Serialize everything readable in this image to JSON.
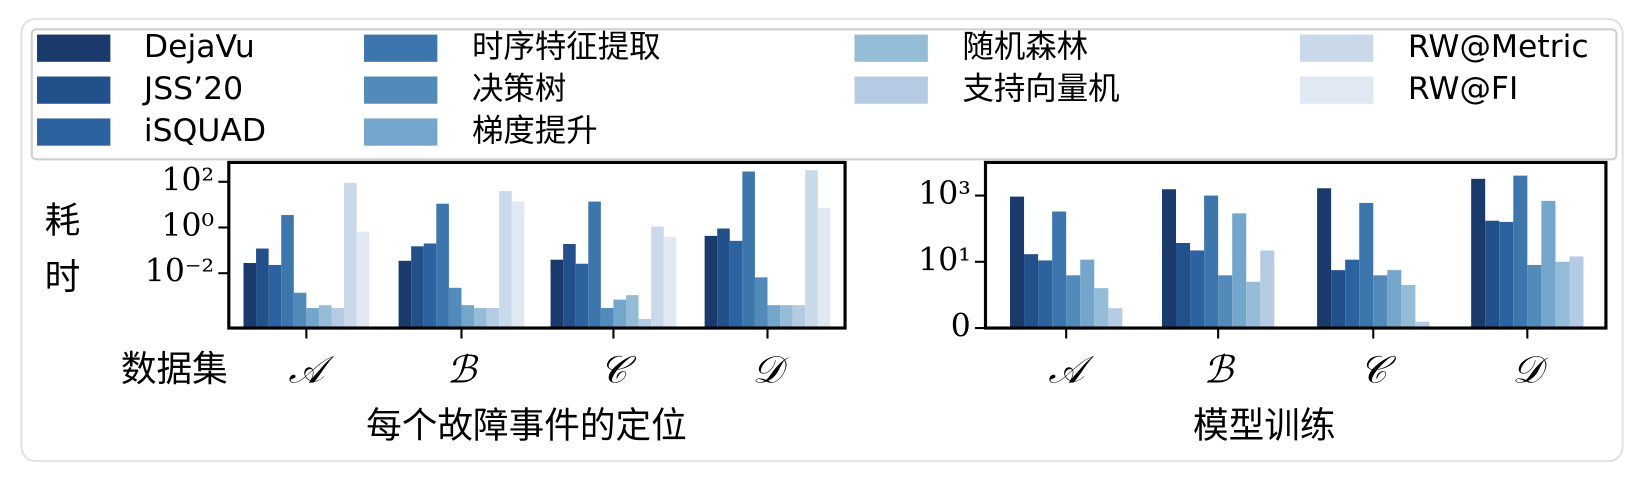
{
  "chart_data": [
    {
      "type": "bar",
      "scale": "log",
      "ylabel": "耗时",
      "category_label": "数据集",
      "xlabel": "每个故障事件的定位",
      "categories": [
        "𝒜",
        "ℬ",
        "𝒞",
        "𝒟"
      ],
      "ylim": [
        4e-05,
        700
      ],
      "yticks": [
        {
          "value": 0.01,
          "label": "10⁻²"
        },
        {
          "value": 1,
          "label": "10⁰"
        },
        {
          "value": 100,
          "label": "10²"
        }
      ],
      "series": [
        {
          "name": "DejaVu",
          "color": "#1b3a6c",
          "values": [
            0.028,
            0.035,
            0.039,
            0.43
          ]
        },
        {
          "name": "JSS’20",
          "color": "#22508b",
          "values": [
            0.12,
            0.15,
            0.19,
            0.9
          ]
        },
        {
          "name": "iSQUAD",
          "color": "#2d62a0",
          "values": [
            0.023,
            0.2,
            0.026,
            0.26
          ]
        },
        {
          "name": "时序特征提取",
          "color": "#3d76ac",
          "values": [
            3.5,
            11,
            13.6,
            280
          ]
        },
        {
          "name": "决策树",
          "color": "#528bb9",
          "values": [
            0.0014,
            0.0023,
            0.0003,
            0.0066
          ]
        },
        {
          "name": "梯度提升",
          "color": "#74a6cb",
          "values": [
            0.0003,
            0.0004,
            0.0007,
            0.0004
          ]
        },
        {
          "name": "随机森林",
          "color": "#95bcd7",
          "values": [
            0.0004,
            0.0003,
            0.0011,
            0.0004
          ]
        },
        {
          "name": "支持向量机",
          "color": "#b4cbe3",
          "values": [
            0.0003,
            0.0003,
            0.0001,
            0.0004
          ]
        },
        {
          "name": "RW@Metric",
          "color": "#cad9ea",
          "values": [
            90,
            39,
            1.1,
            320
          ]
        },
        {
          "name": "RW@FI",
          "color": "#dfe8f3",
          "values": [
            0.66,
            13.6,
            0.39,
            7.3
          ]
        }
      ]
    },
    {
      "type": "bar",
      "scale": "symlog",
      "xlabel": "模型训练",
      "categories": [
        "𝒜",
        "ℬ",
        "𝒞",
        "𝒟"
      ],
      "ylim": [
        0,
        10000
      ],
      "yticks": [
        0,
        {
          "value": 10,
          "label": "10¹"
        },
        {
          "value": 1000,
          "label": "10³"
        }
      ],
      "series": [
        {
          "color": "#1b3a6c",
          "values": [
            930,
            1550,
            1660,
            3200
          ]
        },
        {
          "color": "#22508b",
          "values": [
            17,
            37,
            5.6,
            174
          ]
        },
        {
          "color": "#2d62a0",
          "values": [
            11,
            22,
            11.6,
            160
          ]
        },
        {
          "color": "#3d76ac",
          "values": [
            330,
            1000,
            600,
            4000
          ]
        },
        {
          "color": "#528bb9",
          "values": [
            3.9,
            3.9,
            3.9,
            8
          ]
        },
        {
          "color": "#74a6cb",
          "values": [
            11.6,
            290,
            5.6,
            690
          ]
        },
        {
          "color": "#95bcd7",
          "values": [
            1.6,
            2.5,
            2,
            10
          ]
        },
        {
          "color": "#b4cbe3",
          "values": [
            0.6,
            22,
            0.19,
            14.5
          ]
        }
      ]
    }
  ]
}
